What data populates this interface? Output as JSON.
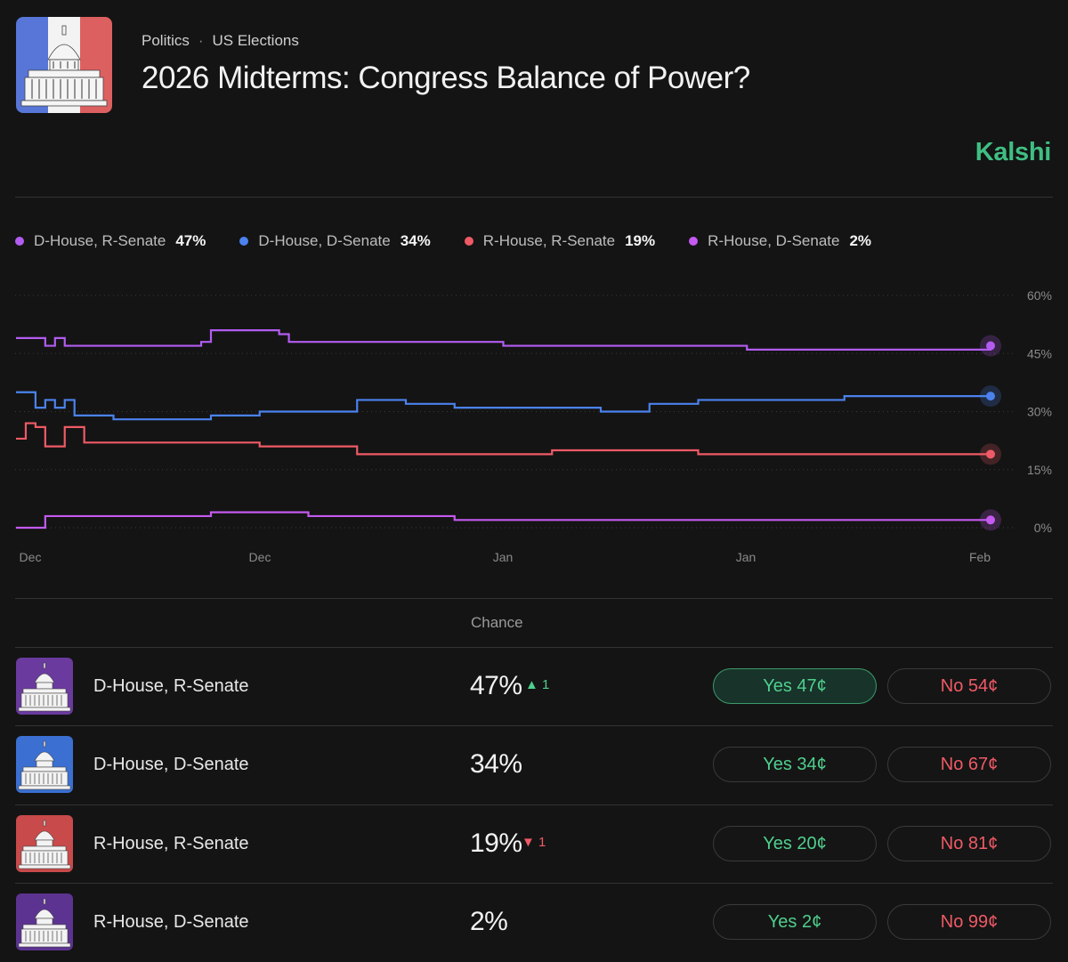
{
  "header": {
    "breadcrumbs": [
      "Politics",
      "US Elections"
    ],
    "separator": "·",
    "title": "2026 Midterms: Congress Balance of Power?",
    "brand": "Kalshi",
    "thumbnail_icon": "capitol-building-icon"
  },
  "colors": {
    "background": "#141414",
    "brand": "#3fbf83",
    "d_house_r_senate": "#b25cf0",
    "d_house_d_senate": "#4b82ee",
    "r_house_r_senate": "#ef5a66",
    "r_house_d_senate": "#c45af0",
    "yes": "#4fcf8d",
    "no": "#ef5a66"
  },
  "legend": [
    {
      "label": "D-House, R-Senate",
      "value": "47%",
      "color": "#b25cf0"
    },
    {
      "label": "D-House, D-Senate",
      "value": "34%",
      "color": "#4b82ee"
    },
    {
      "label": "R-House, R-Senate",
      "value": "19%",
      "color": "#ef5a66"
    },
    {
      "label": "R-House, D-Senate",
      "value": "2%",
      "color": "#c45af0"
    }
  ],
  "chart_data": {
    "type": "line",
    "x_ticks": [
      "Dec",
      "Dec",
      "Jan",
      "Jan",
      "Feb"
    ],
    "y_ticks": [
      "60%",
      "45%",
      "30%",
      "15%",
      "0%"
    ],
    "ylim": [
      0,
      60
    ],
    "grid": "dotted horizontal",
    "series": [
      {
        "name": "D-House, R-Senate",
        "color": "#b25cf0",
        "x": [
          0,
          2,
          3,
          4,
          5,
          10,
          11,
          12,
          17,
          18,
          19,
          20,
          27,
          28,
          40,
          45,
          50,
          55,
          60,
          65,
          70,
          75,
          80,
          85,
          90,
          95,
          100
        ],
        "y": [
          49,
          49,
          47,
          49,
          47,
          47,
          47,
          47,
          47,
          47,
          48,
          51,
          50,
          48,
          48,
          48,
          47,
          47,
          47,
          47,
          47,
          46,
          46,
          46,
          46,
          46,
          47
        ]
      },
      {
        "name": "D-House, D-Senate",
        "color": "#4b82ee",
        "x": [
          0,
          1,
          2,
          3,
          4,
          5,
          6,
          7,
          10,
          20,
          25,
          30,
          35,
          40,
          45,
          50,
          55,
          60,
          65,
          70,
          75,
          80,
          85,
          90,
          95,
          100
        ],
        "y": [
          35,
          35,
          31,
          33,
          31,
          33,
          29,
          29,
          28,
          29,
          30,
          30,
          33,
          32,
          31,
          31,
          31,
          30,
          32,
          33,
          33,
          33,
          34,
          34,
          34,
          34
        ]
      },
      {
        "name": "R-House, R-Senate",
        "color": "#ef5a66",
        "x": [
          0,
          1,
          2,
          3,
          4,
          5,
          6,
          7,
          10,
          20,
          25,
          30,
          35,
          40,
          45,
          50,
          55,
          60,
          65,
          70,
          75,
          80,
          85,
          90,
          95,
          100
        ],
        "y": [
          23,
          27,
          26,
          21,
          21,
          26,
          26,
          22,
          22,
          22,
          21,
          21,
          19,
          19,
          19,
          19,
          20,
          20,
          20,
          19,
          19,
          19,
          19,
          19,
          19,
          19
        ]
      },
      {
        "name": "R-House, D-Senate",
        "color": "#c45af0",
        "x": [
          0,
          2,
          3,
          4,
          5,
          10,
          15,
          20,
          25,
          30,
          35,
          40,
          45,
          50,
          55,
          60,
          65,
          70,
          75,
          80,
          85,
          90,
          95,
          100
        ],
        "y": [
          0,
          0,
          3,
          3,
          3,
          3,
          3,
          4,
          4,
          3,
          3,
          3,
          2,
          2,
          2,
          2,
          2,
          2,
          2,
          2,
          2,
          2,
          2,
          2
        ]
      }
    ]
  },
  "table": {
    "header": "Chance",
    "rows": [
      {
        "name": "D-House, R-Senate",
        "chance": "47%",
        "change": "▲ 1",
        "change_dir": "up",
        "yes": "Yes 47¢",
        "no": "No 54¢",
        "thumb_color": "#6a3a9e",
        "yes_active": true
      },
      {
        "name": "D-House, D-Senate",
        "chance": "34%",
        "change": "",
        "change_dir": "",
        "yes": "Yes 34¢",
        "no": "No 67¢",
        "thumb_color": "#3b6fd1",
        "yes_active": false
      },
      {
        "name": "R-House, R-Senate",
        "chance": "19%",
        "change": "▼ 1",
        "change_dir": "down",
        "yes": "Yes 20¢",
        "no": "No 81¢",
        "thumb_color": "#c84a4a",
        "yes_active": false
      },
      {
        "name": "R-House, D-Senate",
        "chance": "2%",
        "change": "",
        "change_dir": "",
        "yes": "Yes 2¢",
        "no": "No 99¢",
        "thumb_color": "#5c3391",
        "yes_active": false
      }
    ]
  }
}
